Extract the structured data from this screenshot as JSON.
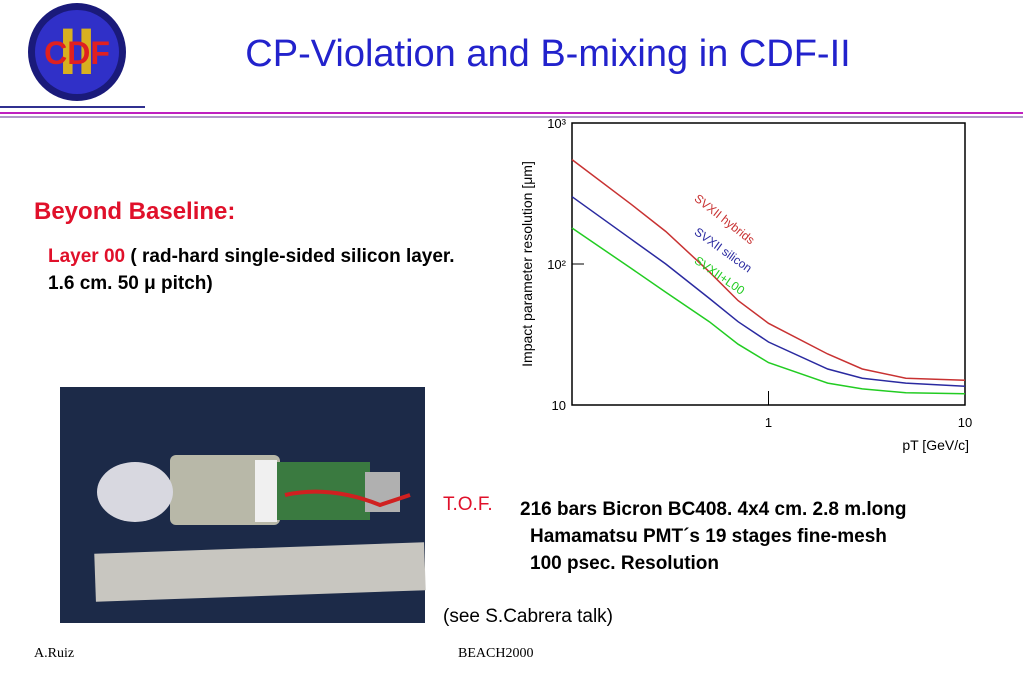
{
  "header": {
    "logo": {
      "main": "CDF",
      "overlay": "II"
    },
    "title": "CP-Violation and B-mixing in CDF-II"
  },
  "section": {
    "heading": "Beyond Baseline:",
    "label": "Layer 00",
    "text": "( rad-hard single-sided silicon layer. 1.6 cm. 50 μ pitch)"
  },
  "tof": {
    "label": "T.O.F.",
    "lines": [
      "216 bars Bicron BC408. 4x4 cm. 2.8 m.long",
      "Hamamatsu PMT´s 19 stages fine-mesh",
      "100 psec. Resolution"
    ],
    "note": "(see S.Cabrera talk)"
  },
  "footer": {
    "left": "A.Ruiz",
    "center": "BEACH2000"
  },
  "chart_data": {
    "type": "line",
    "xlabel": "pT [GeV/c]",
    "ylabel": "Impact parameter resolution [μm]",
    "x": [
      0.1,
      0.2,
      0.3,
      0.5,
      0.7,
      1,
      2,
      3,
      5,
      10
    ],
    "series": [
      {
        "name": "SVXII hybrids",
        "color": "#c83232",
        "values": [
          550,
          265,
          170,
          88,
          55,
          38,
          23,
          18,
          15.5,
          15
        ]
      },
      {
        "name": "SVXII silicon",
        "color": "#2a2aa0",
        "values": [
          300,
          150,
          100,
          57,
          39,
          28,
          18,
          15.5,
          14.3,
          13.6
        ]
      },
      {
        "name": "SVXII+L00",
        "color": "#22cc22",
        "values": [
          180,
          93,
          63,
          39,
          27,
          20,
          14.3,
          13,
          12.2,
          12
        ]
      }
    ],
    "xlim": [
      0.1,
      10
    ],
    "ylim": [
      10,
      1000
    ],
    "xticks": [
      1,
      10
    ],
    "yticks": [
      10,
      {
        "value": 100,
        "label": "10²"
      },
      {
        "value": 1000,
        "label": "10³"
      }
    ],
    "log_x": true,
    "log_y": true
  }
}
